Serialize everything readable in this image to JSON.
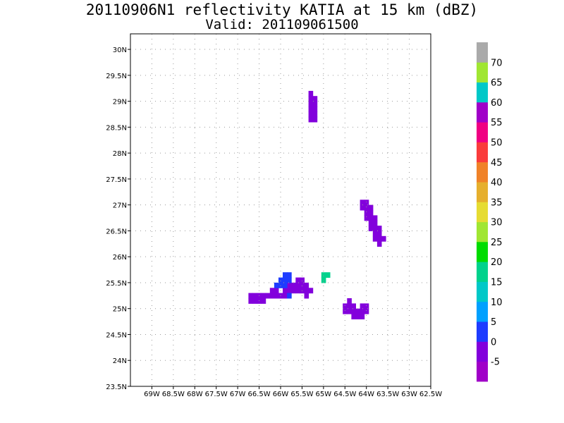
{
  "title_line1": "20110906N1 reflectivity KATIA at 15 km (dBZ)",
  "title_line2": "Valid: 201109061500",
  "chart_data": {
    "type": "heatmap",
    "xlim": [
      -69.5,
      -62.5
    ],
    "ylim": [
      23.5,
      30.3
    ],
    "x_ticks": [
      {
        "v": -69,
        "label": "69W"
      },
      {
        "v": -68.5,
        "label": "68.5W"
      },
      {
        "v": -68,
        "label": "68W"
      },
      {
        "v": -67.5,
        "label": "67.5W"
      },
      {
        "v": -67,
        "label": "67W"
      },
      {
        "v": -66.5,
        "label": "66.5W"
      },
      {
        "v": -66,
        "label": "66W"
      },
      {
        "v": -65.5,
        "label": "65.5W"
      },
      {
        "v": -65,
        "label": "65W"
      },
      {
        "v": -64.5,
        "label": "64.5W"
      },
      {
        "v": -64,
        "label": "64W"
      },
      {
        "v": -63.5,
        "label": "63.5W"
      },
      {
        "v": -63,
        "label": "63W"
      },
      {
        "v": -62.5,
        "label": "62.5W"
      }
    ],
    "y_ticks": [
      {
        "v": 23.5,
        "label": "23.5N"
      },
      {
        "v": 24,
        "label": "24N"
      },
      {
        "v": 24.5,
        "label": "24.5N"
      },
      {
        "v": 25,
        "label": "25N"
      },
      {
        "v": 25.5,
        "label": "25.5N"
      },
      {
        "v": 26,
        "label": "26N"
      },
      {
        "v": 26.5,
        "label": "26.5N"
      },
      {
        "v": 27,
        "label": "27N"
      },
      {
        "v": 27.5,
        "label": "27.5N"
      },
      {
        "v": 28,
        "label": "28N"
      },
      {
        "v": 28.5,
        "label": "28.5N"
      },
      {
        "v": 29,
        "label": "29N"
      },
      {
        "v": 29.5,
        "label": "29.5N"
      },
      {
        "v": 30,
        "label": "30N"
      }
    ],
    "grid": true,
    "colorbar": {
      "placement": "right",
      "colors": [
        "#a000c8",
        "#8200dc",
        "#1e3cff",
        "#00a0ff",
        "#00c8c8",
        "#00d28c",
        "#00dc00",
        "#a0e632",
        "#e6dc32",
        "#e6af2d",
        "#f08228",
        "#fa3c3c",
        "#f00082",
        "#a000c8",
        "#00c8c8",
        "#a0e632",
        "#aaaaaa"
      ],
      "labels": [
        "-5",
        "0",
        "5",
        "10",
        "15",
        "20",
        "25",
        "30",
        "35",
        "40",
        "45",
        "50",
        "55",
        "60",
        "65",
        "70"
      ]
    },
    "cells": [
      {
        "lon": -65.3,
        "lat": 28.65,
        "dbz": -5
      },
      {
        "lon": -65.2,
        "lat": 28.65,
        "dbz": -5
      },
      {
        "lon": -65.3,
        "lat": 28.75,
        "dbz": -5
      },
      {
        "lon": -65.2,
        "lat": 28.75,
        "dbz": -5
      },
      {
        "lon": -65.3,
        "lat": 28.85,
        "dbz": -5
      },
      {
        "lon": -65.2,
        "lat": 28.85,
        "dbz": -5
      },
      {
        "lon": -65.3,
        "lat": 28.95,
        "dbz": -5
      },
      {
        "lon": -65.2,
        "lat": 28.95,
        "dbz": -5
      },
      {
        "lon": -65.3,
        "lat": 29.05,
        "dbz": -5
      },
      {
        "lon": -65.2,
        "lat": 29.05,
        "dbz": -5
      },
      {
        "lon": -65.3,
        "lat": 29.15,
        "dbz": -5
      },
      {
        "lon": -64.1,
        "lat": 27.05,
        "dbz": -5
      },
      {
        "lon": -64.0,
        "lat": 27.05,
        "dbz": -5
      },
      {
        "lon": -64.1,
        "lat": 26.95,
        "dbz": -5
      },
      {
        "lon": -64.0,
        "lat": 26.95,
        "dbz": -5
      },
      {
        "lon": -63.9,
        "lat": 26.95,
        "dbz": -5
      },
      {
        "lon": -64.0,
        "lat": 26.85,
        "dbz": -5
      },
      {
        "lon": -63.9,
        "lat": 26.85,
        "dbz": -5
      },
      {
        "lon": -64.0,
        "lat": 26.75,
        "dbz": -5
      },
      {
        "lon": -63.9,
        "lat": 26.75,
        "dbz": -5
      },
      {
        "lon": -63.8,
        "lat": 26.75,
        "dbz": -5
      },
      {
        "lon": -63.9,
        "lat": 26.65,
        "dbz": -5
      },
      {
        "lon": -63.8,
        "lat": 26.65,
        "dbz": -5
      },
      {
        "lon": -63.9,
        "lat": 26.55,
        "dbz": -5
      },
      {
        "lon": -63.8,
        "lat": 26.55,
        "dbz": -5
      },
      {
        "lon": -63.7,
        "lat": 26.55,
        "dbz": -5
      },
      {
        "lon": -63.8,
        "lat": 26.45,
        "dbz": -5
      },
      {
        "lon": -63.7,
        "lat": 26.45,
        "dbz": -5
      },
      {
        "lon": -63.8,
        "lat": 26.35,
        "dbz": -5
      },
      {
        "lon": -63.7,
        "lat": 26.35,
        "dbz": -5
      },
      {
        "lon": -63.6,
        "lat": 26.35,
        "dbz": -5
      },
      {
        "lon": -63.7,
        "lat": 26.25,
        "dbz": -5
      },
      {
        "lon": -65.0,
        "lat": 25.65,
        "dbz": 15
      },
      {
        "lon": -64.9,
        "lat": 25.65,
        "dbz": 15
      },
      {
        "lon": -65.0,
        "lat": 25.55,
        "dbz": 15
      },
      {
        "lon": -64.4,
        "lat": 25.15,
        "dbz": -5
      },
      {
        "lon": -64.5,
        "lat": 25.05,
        "dbz": -5
      },
      {
        "lon": -64.4,
        "lat": 25.05,
        "dbz": -5
      },
      {
        "lon": -64.3,
        "lat": 25.05,
        "dbz": -5
      },
      {
        "lon": -64.1,
        "lat": 25.05,
        "dbz": -5
      },
      {
        "lon": -64.0,
        "lat": 25.05,
        "dbz": -5
      },
      {
        "lon": -64.5,
        "lat": 24.95,
        "dbz": -5
      },
      {
        "lon": -64.4,
        "lat": 24.95,
        "dbz": -5
      },
      {
        "lon": -64.3,
        "lat": 24.95,
        "dbz": -5
      },
      {
        "lon": -64.2,
        "lat": 24.95,
        "dbz": -5
      },
      {
        "lon": -64.1,
        "lat": 24.95,
        "dbz": -5
      },
      {
        "lon": -64.0,
        "lat": 24.95,
        "dbz": -5
      },
      {
        "lon": -64.3,
        "lat": 24.85,
        "dbz": -5
      },
      {
        "lon": -64.2,
        "lat": 24.85,
        "dbz": -5
      },
      {
        "lon": -64.1,
        "lat": 24.85,
        "dbz": -5
      },
      {
        "lon": -66.7,
        "lat": 25.25,
        "dbz": -5
      },
      {
        "lon": -66.6,
        "lat": 25.25,
        "dbz": -5
      },
      {
        "lon": -66.5,
        "lat": 25.25,
        "dbz": -5
      },
      {
        "lon": -66.4,
        "lat": 25.25,
        "dbz": -5
      },
      {
        "lon": -66.3,
        "lat": 25.25,
        "dbz": -5
      },
      {
        "lon": -66.2,
        "lat": 25.25,
        "dbz": -5
      },
      {
        "lon": -66.1,
        "lat": 25.25,
        "dbz": -5
      },
      {
        "lon": -66.0,
        "lat": 25.25,
        "dbz": -5
      },
      {
        "lon": -65.9,
        "lat": 25.25,
        "dbz": -5
      },
      {
        "lon": -66.7,
        "lat": 25.15,
        "dbz": -5
      },
      {
        "lon": -66.6,
        "lat": 25.15,
        "dbz": -5
      },
      {
        "lon": -66.5,
        "lat": 25.15,
        "dbz": -5
      },
      {
        "lon": -66.4,
        "lat": 25.15,
        "dbz": -5
      },
      {
        "lon": -66.2,
        "lat": 25.35,
        "dbz": -5
      },
      {
        "lon": -66.1,
        "lat": 25.35,
        "dbz": -5
      },
      {
        "lon": -65.9,
        "lat": 25.35,
        "dbz": -5
      },
      {
        "lon": -65.8,
        "lat": 25.35,
        "dbz": -5
      },
      {
        "lon": -65.7,
        "lat": 25.35,
        "dbz": -5
      },
      {
        "lon": -65.6,
        "lat": 25.35,
        "dbz": -5
      },
      {
        "lon": -65.5,
        "lat": 25.35,
        "dbz": -5
      },
      {
        "lon": -65.4,
        "lat": 25.35,
        "dbz": -5
      },
      {
        "lon": -65.3,
        "lat": 25.35,
        "dbz": -5
      },
      {
        "lon": -65.8,
        "lat": 25.45,
        "dbz": -5
      },
      {
        "lon": -65.7,
        "lat": 25.45,
        "dbz": -5
      },
      {
        "lon": -65.6,
        "lat": 25.45,
        "dbz": -5
      },
      {
        "lon": -65.5,
        "lat": 25.45,
        "dbz": -5
      },
      {
        "lon": -65.4,
        "lat": 25.45,
        "dbz": -5
      },
      {
        "lon": -65.6,
        "lat": 25.55,
        "dbz": -5
      },
      {
        "lon": -65.5,
        "lat": 25.55,
        "dbz": -5
      },
      {
        "lon": -65.4,
        "lat": 25.25,
        "dbz": -5
      },
      {
        "lon": -66.1,
        "lat": 25.45,
        "dbz": 0
      },
      {
        "lon": -66.0,
        "lat": 25.45,
        "dbz": 0
      },
      {
        "lon": -66.0,
        "lat": 25.55,
        "dbz": 0
      },
      {
        "lon": -65.9,
        "lat": 25.55,
        "dbz": 0
      },
      {
        "lon": -65.9,
        "lat": 25.65,
        "dbz": 0
      },
      {
        "lon": -65.8,
        "lat": 25.65,
        "dbz": 0
      },
      {
        "lon": -65.8,
        "lat": 25.55,
        "dbz": 0
      },
      {
        "lon": -65.9,
        "lat": 25.45,
        "dbz": 0
      },
      {
        "lon": -65.8,
        "lat": 25.25,
        "dbz": 0
      }
    ]
  }
}
